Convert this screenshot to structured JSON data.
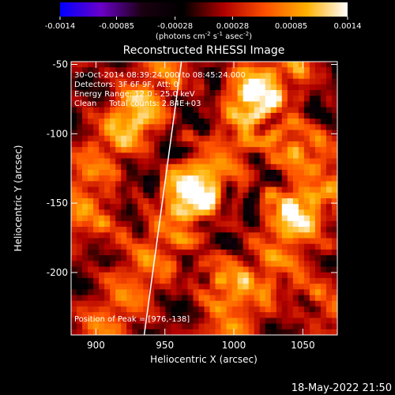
{
  "chart_data": {
    "type": "heatmap",
    "title": "Reconstructed RHESSI Image",
    "xlabel": "Heliocentric X (arcsec)",
    "ylabel": "Heliocentric Y (arcsec)",
    "xlim": [
      882,
      1075
    ],
    "ylim": [
      -245,
      -48
    ],
    "xticks": [
      900,
      950,
      1000,
      1050
    ],
    "yticks": [
      -50,
      -100,
      -150,
      -200
    ],
    "colorbar": {
      "ticks": [
        "-0.0014",
        "-0.00085",
        "-0.00028",
        "0.00028",
        "0.00085",
        "0.0014"
      ],
      "range": [
        -0.0014,
        0.0014
      ],
      "unit_label_parts": [
        "(photons cm",
        "-2",
        " s",
        "-1",
        " asec",
        "-2",
        ")"
      ],
      "colormap_stops": [
        "#0000ff",
        "#6a00c8",
        "#1a0010",
        "#000000",
        "#b00000",
        "#ff5000",
        "#ffb000",
        "#ffffff"
      ]
    },
    "annotations": [
      "30-Oct-2014 08:39:24.000 to 08:45:24.000",
      "Detectors: 3F 6F 9F, Att: 0",
      "Energy Range: 12.0 - 25.0 keV",
      "Clean     Total counts: 2.84E+03"
    ],
    "peak_label": "Position of Peak = [976,-138]",
    "limb_line": {
      "x": [
        962,
        935
      ],
      "y": [
        -48,
        -245
      ]
    },
    "bright_sources": [
      {
        "x": 968,
        "y": -140,
        "v": 0.0014
      },
      {
        "x": 1012,
        "y": -70,
        "v": 0.0013
      },
      {
        "x": 1045,
        "y": -110,
        "v": 0.0011
      },
      {
        "x": 1040,
        "y": -155,
        "v": 0.001
      },
      {
        "x": 990,
        "y": -205,
        "v": 0.0008
      },
      {
        "x": 930,
        "y": -90,
        "v": 0.0007
      },
      {
        "x": 905,
        "y": -165,
        "v": 0.0006
      },
      {
        "x": 1060,
        "y": -215,
        "v": 0.0006
      }
    ]
  },
  "footer": {
    "timestamp": "18-May-2022 21:50"
  }
}
